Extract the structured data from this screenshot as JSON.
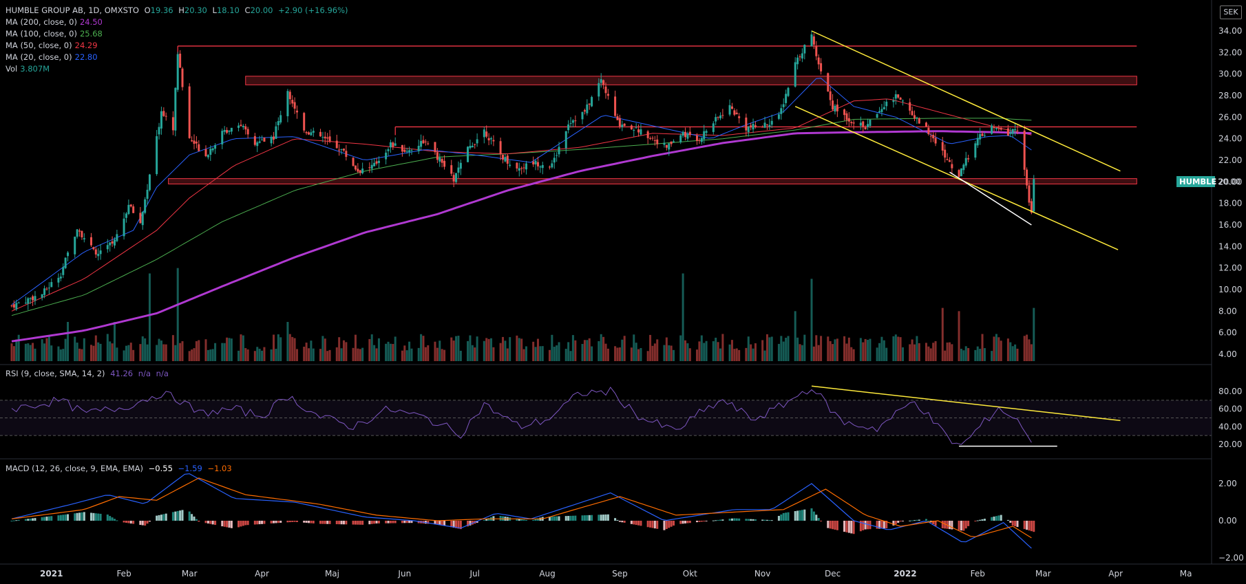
{
  "header": {
    "symbol_line": "HUMBLE GROUP AB, 1D, OMXSTO",
    "o_label": "O",
    "o_val": "19.36",
    "h_label": "H",
    "h_val": "20.30",
    "l_label": "L",
    "l_val": "18.10",
    "c_label": "C",
    "c_val": "20.00",
    "change": "+2.90 (+16.96%)"
  },
  "currency": "SEK",
  "price_tag": {
    "symbol": "HUMBLE",
    "value": "20.00"
  },
  "legend_ma": [
    {
      "label": "MA (200, close, 0)",
      "value": "24.50",
      "color": "#b039d1"
    },
    {
      "label": "MA (100, close, 0)",
      "value": "25.68",
      "color": "#4caf50"
    },
    {
      "label": "MA (50, close, 0)",
      "value": "24.29",
      "color": "#f23645"
    },
    {
      "label": "MA (20, close, 0)",
      "value": "22.80",
      "color": "#2962ff"
    },
    {
      "label": "Vol",
      "value": "3.807M",
      "color": "#26a69a"
    }
  ],
  "rsi_legend": {
    "label": "RSI (9, close, SMA, 14, 2)",
    "value": "41.26",
    "na1": "n/a",
    "na2": "n/a"
  },
  "macd_legend": {
    "label": "MACD (12, 26, close, 9, EMA, EMA)",
    "hist": "−0.55",
    "macd": "−1.59",
    "signal": "−1.03"
  },
  "colors": {
    "up": "#26a69a",
    "down": "#ef5350",
    "ma200": "#b039d1",
    "ma100": "#4caf50",
    "ma50": "#f23645",
    "ma20": "#2962ff",
    "rsi": "#7e57c2",
    "trend_yellow": "#ffeb3b",
    "level_red": "#f23645",
    "macd_line": "#2962ff",
    "signal_line": "#ff6d00"
  },
  "chart_data": [
    {
      "type": "candlestick",
      "title": "HUMBLE GROUP AB, 1D, OMXSTO",
      "price_ticks": [
        "34.00",
        "32.00",
        "30.00",
        "28.00",
        "26.00",
        "24.00",
        "22.00",
        "20.00",
        "18.00",
        "16.00",
        "14.00",
        "12.00",
        "10.00",
        "8.00",
        "6.00",
        "4.00"
      ],
      "price_tick_values": [
        34,
        32,
        30,
        28,
        26,
        24,
        22,
        20,
        18,
        16,
        14,
        12,
        10,
        8,
        6,
        4
      ],
      "ylim": [
        3.2,
        36.3
      ],
      "x_labels": [
        "2021",
        "Feb",
        "Mar",
        "Apr",
        "Maj",
        "Jun",
        "Jul",
        "Aug",
        "Sep",
        "Okt",
        "Nov",
        "Dec",
        "2022",
        "Feb",
        "Mar",
        "Apr",
        "Ma"
      ],
      "x_label_dates": [
        "2021-01-01",
        "2021-02-01",
        "2021-03-01",
        "2021-04-01",
        "2021-05-01",
        "2021-06-01",
        "2021-07-01",
        "2021-08-01",
        "2021-09-01",
        "2021-10-01",
        "2021-11-01",
        "2021-12-01",
        "2022-01-01",
        "2022-02-01",
        "2022-03-01",
        "2022-04-01",
        "2022-05-01"
      ],
      "close_path": [
        [
          "2020-12-15",
          8.5
        ],
        [
          "2020-12-28",
          9.6
        ],
        [
          "2021-01-05",
          11.5
        ],
        [
          "2021-01-12",
          15.8
        ],
        [
          "2021-01-20",
          13.2
        ],
        [
          "2021-01-28",
          14.5
        ],
        [
          "2021-02-03",
          17.8
        ],
        [
          "2021-02-08",
          16.2
        ],
        [
          "2021-02-12",
          20.5
        ],
        [
          "2021-02-17",
          26.5
        ],
        [
          "2021-02-22",
          25.0
        ],
        [
          "2021-02-24",
          32.0
        ],
        [
          "2021-03-01",
          24.0
        ],
        [
          "2021-03-08",
          22.5
        ],
        [
          "2021-03-15",
          24.5
        ],
        [
          "2021-03-22",
          25.5
        ],
        [
          "2021-03-29",
          23.5
        ],
        [
          "2021-04-06",
          24.2
        ],
        [
          "2021-04-12",
          28.5
        ],
        [
          "2021-04-19",
          24.8
        ],
        [
          "2021-04-26",
          24.2
        ],
        [
          "2021-05-05",
          23.0
        ],
        [
          "2021-05-12",
          21.0
        ],
        [
          "2021-05-19",
          21.5
        ],
        [
          "2021-05-26",
          23.5
        ],
        [
          "2021-06-02",
          22.8
        ],
        [
          "2021-06-09",
          23.8
        ],
        [
          "2021-06-16",
          22.0
        ],
        [
          "2021-06-22",
          20.2
        ],
        [
          "2021-06-28",
          23.0
        ],
        [
          "2021-07-05",
          24.8
        ],
        [
          "2021-07-12",
          22.5
        ],
        [
          "2021-07-19",
          21.2
        ],
        [
          "2021-07-26",
          21.8
        ],
        [
          "2021-08-03",
          21.5
        ],
        [
          "2021-08-10",
          25.5
        ],
        [
          "2021-08-17",
          26.5
        ],
        [
          "2021-08-24",
          29.5
        ],
        [
          "2021-08-31",
          25.5
        ],
        [
          "2021-09-07",
          25.0
        ],
        [
          "2021-09-14",
          24.2
        ],
        [
          "2021-09-21",
          23.2
        ],
        [
          "2021-09-28",
          24.5
        ],
        [
          "2021-10-04",
          23.8
        ],
        [
          "2021-10-11",
          25.5
        ],
        [
          "2021-10-18",
          27.0
        ],
        [
          "2021-10-25",
          25.0
        ],
        [
          "2021-11-01",
          25.2
        ],
        [
          "2021-11-08",
          26.0
        ],
        [
          "2021-11-15",
          31.0
        ],
        [
          "2021-11-22",
          33.5
        ],
        [
          "2021-11-25",
          31.0
        ],
        [
          "2021-12-01",
          27.0
        ],
        [
          "2021-12-08",
          25.8
        ],
        [
          "2021-12-15",
          25.0
        ],
        [
          "2021-12-22",
          27.0
        ],
        [
          "2021-12-29",
          28.0
        ],
        [
          "2022-01-05",
          26.0
        ],
        [
          "2022-01-12",
          24.5
        ],
        [
          "2022-01-19",
          22.0
        ],
        [
          "2022-01-24",
          20.5
        ],
        [
          "2022-01-31",
          23.8
        ],
        [
          "2022-02-07",
          25.0
        ],
        [
          "2022-02-14",
          24.5
        ],
        [
          "2022-02-18",
          25.0
        ],
        [
          "2022-02-21",
          21.0
        ],
        [
          "2022-02-23",
          18.0
        ],
        [
          "2022-02-24",
          17.1
        ],
        [
          "2022-02-25",
          20.0
        ]
      ],
      "horizontal_levels": [
        {
          "from": "2021-02-24",
          "to": "2022-04-10",
          "price": 32.6,
          "kind": "line"
        },
        {
          "from": "2021-03-25",
          "to": "2022-04-10",
          "price_top": 29.8,
          "price_bottom": 29.0,
          "kind": "zone"
        },
        {
          "from": "2021-05-28",
          "to": "2022-04-10",
          "price": 25.1,
          "kind": "line"
        },
        {
          "from": "2021-02-20",
          "to": "2022-04-10",
          "price_top": 20.3,
          "price_bottom": 19.8,
          "kind": "zone"
        }
      ],
      "trendlines": [
        {
          "from": [
            "2021-11-22",
            34.0
          ],
          "to": [
            "2022-04-03",
            21.0
          ],
          "color": "yellow"
        },
        {
          "from": [
            "2021-11-15",
            27.0
          ],
          "to": [
            "2022-04-02",
            13.7
          ],
          "color": "yellow"
        },
        {
          "from": [
            "2022-01-20",
            20.9
          ],
          "to": [
            "2022-02-24",
            16.0
          ],
          "color": "white"
        }
      ],
      "ma200_path": [
        [
          "2020-12-15",
          5.2
        ],
        [
          "2021-01-15",
          6.2
        ],
        [
          "2021-02-15",
          7.8
        ],
        [
          "2021-03-15",
          10.3
        ],
        [
          "2021-04-15",
          13.0
        ],
        [
          "2021-05-15",
          15.3
        ],
        [
          "2021-06-15",
          17.0
        ],
        [
          "2021-07-15",
          19.2
        ],
        [
          "2021-08-15",
          21.0
        ],
        [
          "2021-09-15",
          22.4
        ],
        [
          "2021-10-15",
          23.6
        ],
        [
          "2021-11-15",
          24.5
        ],
        [
          "2021-12-10",
          24.6
        ],
        [
          "2022-01-15",
          24.7
        ],
        [
          "2022-02-10",
          24.6
        ],
        [
          "2022-02-25",
          24.5
        ]
      ],
      "ma100_path": [
        [
          "2020-12-15",
          7.6
        ],
        [
          "2021-01-15",
          9.5
        ],
        [
          "2021-02-15",
          12.8
        ],
        [
          "2021-03-15",
          16.3
        ],
        [
          "2021-04-15",
          19.2
        ],
        [
          "2021-05-15",
          21.0
        ],
        [
          "2021-06-15",
          22.3
        ],
        [
          "2021-07-15",
          22.6
        ],
        [
          "2021-08-15",
          23.0
        ],
        [
          "2021-09-15",
          23.5
        ],
        [
          "2021-10-15",
          24.0
        ],
        [
          "2021-11-15",
          24.8
        ],
        [
          "2021-12-10",
          25.8
        ],
        [
          "2022-01-15",
          25.9
        ],
        [
          "2022-02-10",
          25.9
        ],
        [
          "2022-02-25",
          25.7
        ]
      ],
      "ma50_path": [
        [
          "2020-12-15",
          8.0
        ],
        [
          "2021-01-15",
          11.0
        ],
        [
          "2021-02-15",
          15.5
        ],
        [
          "2021-03-01",
          18.5
        ],
        [
          "2021-03-20",
          21.5
        ],
        [
          "2021-04-15",
          24.0
        ],
        [
          "2021-05-15",
          23.5
        ],
        [
          "2021-06-15",
          22.8
        ],
        [
          "2021-07-15",
          22.6
        ],
        [
          "2021-08-15",
          23.2
        ],
        [
          "2021-09-15",
          24.5
        ],
        [
          "2021-10-15",
          24.3
        ],
        [
          "2021-11-15",
          25.0
        ],
        [
          "2021-12-10",
          27.5
        ],
        [
          "2021-12-25",
          27.7
        ],
        [
          "2022-01-15",
          26.5
        ],
        [
          "2022-02-10",
          25.0
        ],
        [
          "2022-02-25",
          24.3
        ]
      ],
      "ma20_path": [
        [
          "2020-12-15",
          8.6
        ],
        [
          "2021-01-15",
          13.5
        ],
        [
          "2021-02-05",
          15.5
        ],
        [
          "2021-02-15",
          19.5
        ],
        [
          "2021-03-01",
          22.5
        ],
        [
          "2021-03-20",
          24.0
        ],
        [
          "2021-04-15",
          24.2
        ],
        [
          "2021-05-15",
          22.0
        ],
        [
          "2021-06-10",
          23.0
        ],
        [
          "2021-07-01",
          22.5
        ],
        [
          "2021-07-25",
          21.8
        ],
        [
          "2021-08-25",
          26.2
        ],
        [
          "2021-09-15",
          25.2
        ],
        [
          "2021-10-10",
          24.0
        ],
        [
          "2021-10-25",
          25.3
        ],
        [
          "2021-11-10",
          26.5
        ],
        [
          "2021-11-25",
          29.8
        ],
        [
          "2021-12-10",
          27.0
        ],
        [
          "2021-12-28",
          26.0
        ],
        [
          "2022-01-20",
          23.5
        ],
        [
          "2022-02-05",
          24.2
        ],
        [
          "2022-02-15",
          24.3
        ],
        [
          "2022-02-25",
          22.8
        ]
      ],
      "volume_spikes": [
        [
          "2021-01-08",
          7.0
        ],
        [
          "2021-01-28",
          7.0
        ],
        [
          "2021-02-12",
          11.5
        ],
        [
          "2021-02-24",
          12.0
        ],
        [
          "2021-04-12",
          7.0
        ],
        [
          "2021-09-28",
          11.5
        ],
        [
          "2021-11-15",
          8.0
        ],
        [
          "2021-11-22",
          11.0
        ],
        [
          "2022-01-17",
          8.3
        ],
        [
          "2022-01-24",
          8.0
        ],
        [
          "2022-02-25",
          8.3
        ]
      ]
    },
    {
      "type": "line",
      "title": "RSI (9, close, SMA, 14, 2)",
      "y_ticks": [
        "80.00",
        "60.00",
        "40.00",
        "20.00"
      ],
      "y_tick_values": [
        80,
        60,
        40,
        20
      ],
      "ylim": [
        8,
        92
      ],
      "bands": [
        70,
        50,
        30
      ],
      "rsi_path": [
        [
          "2020-12-15",
          60
        ],
        [
          "2021-01-05",
          70
        ],
        [
          "2021-01-15",
          55
        ],
        [
          "2021-02-01",
          62
        ],
        [
          "2021-02-17",
          78
        ],
        [
          "2021-02-25",
          70
        ],
        [
          "2021-03-05",
          55
        ],
        [
          "2021-03-20",
          60
        ],
        [
          "2021-04-01",
          52
        ],
        [
          "2021-04-12",
          75
        ],
        [
          "2021-04-25",
          52
        ],
        [
          "2021-05-10",
          40
        ],
        [
          "2021-05-25",
          60
        ],
        [
          "2021-06-10",
          50
        ],
        [
          "2021-06-25",
          32
        ],
        [
          "2021-07-05",
          65
        ],
        [
          "2021-07-20",
          40
        ],
        [
          "2021-08-01",
          48
        ],
        [
          "2021-08-15",
          78
        ],
        [
          "2021-08-28",
          80
        ],
        [
          "2021-09-10",
          50
        ],
        [
          "2021-09-25",
          35
        ],
        [
          "2021-10-05",
          55
        ],
        [
          "2021-10-15",
          70
        ],
        [
          "2021-10-28",
          48
        ],
        [
          "2021-11-08",
          62
        ],
        [
          "2021-11-22",
          85
        ],
        [
          "2021-12-05",
          45
        ],
        [
          "2021-12-20",
          38
        ],
        [
          "2022-01-05",
          70
        ],
        [
          "2022-01-20",
          25
        ],
        [
          "2022-01-25",
          18
        ],
        [
          "2022-02-10",
          62
        ],
        [
          "2022-02-21",
          40
        ],
        [
          "2022-02-24",
          18
        ],
        [
          "2022-02-25",
          41
        ]
      ],
      "trendlines": [
        {
          "from": [
            "2021-11-22",
            86
          ],
          "to": [
            "2022-04-03",
            47
          ],
          "color": "yellow"
        },
        {
          "from": [
            "2022-01-24",
            18
          ],
          "to": [
            "2022-03-07",
            18
          ],
          "color": "white"
        }
      ]
    },
    {
      "type": "line",
      "title": "MACD (12, 26, close, 9, EMA, EMA)",
      "y_ticks": [
        "2.00",
        "0.00",
        "−2.00"
      ],
      "y_tick_values": [
        2,
        0,
        -2
      ],
      "ylim": [
        -2.7,
        3.2
      ],
      "macd_path": [
        [
          "2020-12-15",
          0.1
        ],
        [
          "2021-01-10",
          0.9
        ],
        [
          "2021-01-25",
          1.4
        ],
        [
          "2021-02-10",
          0.9
        ],
        [
          "2021-02-28",
          2.6
        ],
        [
          "2021-03-20",
          1.2
        ],
        [
          "2021-04-15",
          1.0
        ],
        [
          "2021-05-15",
          0.2
        ],
        [
          "2021-06-05",
          0.0
        ],
        [
          "2021-06-25",
          -0.4
        ],
        [
          "2021-07-10",
          0.4
        ],
        [
          "2021-07-25",
          0.1
        ],
        [
          "2021-08-28",
          1.5
        ],
        [
          "2021-09-20",
          0.0
        ],
        [
          "2021-10-20",
          0.6
        ],
        [
          "2021-11-05",
          0.6
        ],
        [
          "2021-11-22",
          2.0
        ],
        [
          "2021-12-10",
          0.0
        ],
        [
          "2021-12-25",
          -0.5
        ],
        [
          "2022-01-10",
          0.0
        ],
        [
          "2022-01-26",
          -1.2
        ],
        [
          "2022-02-12",
          -0.1
        ],
        [
          "2022-02-25",
          -1.6
        ]
      ],
      "signal_path": [
        [
          "2020-12-15",
          0.1
        ],
        [
          "2021-01-15",
          0.6
        ],
        [
          "2021-01-30",
          1.3
        ],
        [
          "2021-02-15",
          1.1
        ],
        [
          "2021-03-05",
          2.3
        ],
        [
          "2021-03-25",
          1.4
        ],
        [
          "2021-04-25",
          0.9
        ],
        [
          "2021-05-20",
          0.3
        ],
        [
          "2021-06-15",
          0.0
        ],
        [
          "2021-07-05",
          0.1
        ],
        [
          "2021-07-30",
          0.1
        ],
        [
          "2021-09-01",
          1.3
        ],
        [
          "2021-09-25",
          0.3
        ],
        [
          "2021-10-25",
          0.5
        ],
        [
          "2021-11-10",
          0.6
        ],
        [
          "2021-11-28",
          1.7
        ],
        [
          "2021-12-15",
          0.3
        ],
        [
          "2021-12-30",
          -0.3
        ],
        [
          "2022-01-15",
          0.0
        ],
        [
          "2022-01-30",
          -0.9
        ],
        [
          "2022-02-16",
          -0.3
        ],
        [
          "2022-02-25",
          -1.0
        ]
      ]
    }
  ]
}
